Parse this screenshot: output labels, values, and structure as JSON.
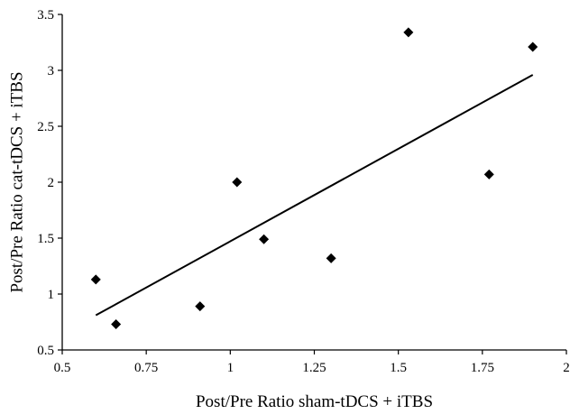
{
  "chart_data": {
    "type": "scatter",
    "xlabel": "Post/Pre Ratio sham-tDCS + iTBS",
    "ylabel": "Post/Pre Ratio cat-tDCS + iTBS",
    "xlim": [
      0.5,
      2
    ],
    "ylim": [
      0.5,
      3.5
    ],
    "xticks": [
      "0.5",
      "0.75",
      "1",
      "1.25",
      "1.5",
      "1.75",
      "2"
    ],
    "yticks": [
      "0.5",
      "1",
      "1.5",
      "2",
      "2.5",
      "3",
      "3.5"
    ],
    "grid": false,
    "legend": "none",
    "marker": "diamond",
    "color": "#000000",
    "series": [
      {
        "points": [
          {
            "x": 0.6,
            "y": 1.13
          },
          {
            "x": 0.66,
            "y": 0.73
          },
          {
            "x": 0.91,
            "y": 0.89
          },
          {
            "x": 1.02,
            "y": 2.0
          },
          {
            "x": 1.1,
            "y": 1.49
          },
          {
            "x": 1.3,
            "y": 1.32
          },
          {
            "x": 1.53,
            "y": 3.34
          },
          {
            "x": 1.77,
            "y": 2.07
          },
          {
            "x": 1.9,
            "y": 3.21
          }
        ]
      }
    ],
    "trendline": {
      "type": "linear",
      "x": [
        0.6,
        1.9
      ],
      "y": [
        0.81,
        2.96
      ]
    }
  }
}
